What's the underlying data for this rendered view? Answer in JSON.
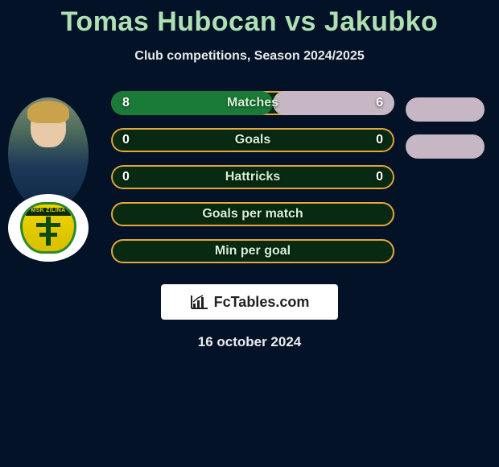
{
  "title": "Tomas Hubocan vs Jakubko",
  "subtitle": "Club competitions, Season 2024/2025",
  "date": "16 october 2024",
  "branding": "FcTables.com",
  "club_badge_text": "MŠK ŽILINA",
  "colors": {
    "title": "#aee0b3",
    "background": "#031226",
    "player1": "#197b37",
    "player2": "#c7b7c4",
    "bar_border": "#e5a73b",
    "bar_fill_inner": "#092a12",
    "branding_bg": "#ffffff",
    "branding_text": "#222222"
  },
  "rows": [
    {
      "label": "Matches",
      "left": "8",
      "right": "6",
      "left_pct": 57,
      "right_pct": 43,
      "show_pill": true,
      "pill_color": "#c7b7c4"
    },
    {
      "label": "Goals",
      "left": "0",
      "right": "0",
      "left_pct": 0,
      "right_pct": 0,
      "show_pill": true,
      "pill_color": "#c7b7c4"
    },
    {
      "label": "Hattricks",
      "left": "0",
      "right": "0",
      "left_pct": 0,
      "right_pct": 0,
      "show_pill": false,
      "pill_color": "#c7b7c4"
    },
    {
      "label": "Goals per match",
      "left": "",
      "right": "",
      "left_pct": 0,
      "right_pct": 0,
      "show_pill": false,
      "pill_color": "#c7b7c4"
    },
    {
      "label": "Min per goal",
      "left": "",
      "right": "",
      "left_pct": 0,
      "right_pct": 0,
      "show_pill": false,
      "pill_color": "#c7b7c4"
    }
  ]
}
